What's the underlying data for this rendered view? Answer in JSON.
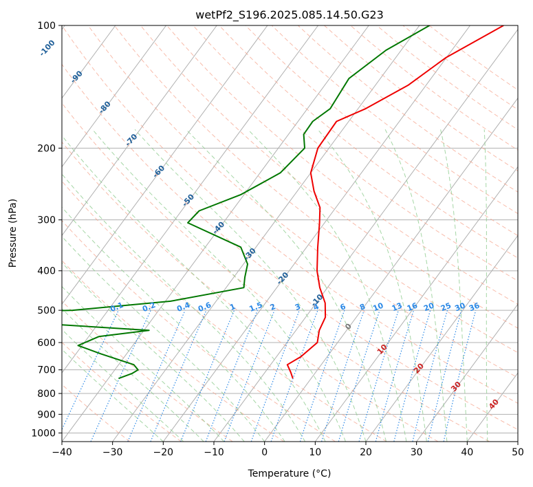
{
  "chart_data": {
    "type": "line",
    "title": "wetPf2_S196.2025.085.14.50.G23",
    "xlabel": "Temperature (°C)",
    "ylabel": "Pressure (hPa)",
    "xlim": [
      -40,
      50
    ],
    "ylim": [
      1050,
      100
    ],
    "y_scale": "log",
    "grid": true,
    "x_ticks": [
      -40,
      -30,
      -20,
      -10,
      0,
      10,
      20,
      30,
      40,
      50
    ],
    "y_ticks": [
      100,
      200,
      300,
      400,
      500,
      600,
      700,
      800,
      900,
      1000
    ],
    "skewed_isotherm_labels": [
      "-100",
      "-90",
      "-80",
      "-70",
      "-60",
      "-50",
      "-40",
      "-30",
      "-20",
      "-10",
      "0",
      "10",
      "20",
      "30",
      "40"
    ],
    "mixing_ratio_labels": [
      "0.1",
      "0.2",
      "0.4",
      "0.6",
      "1",
      "1.5",
      "2",
      "3",
      "4",
      "6",
      "8",
      "10",
      "13",
      "16",
      "20",
      "25",
      "30",
      "36"
    ],
    "colors": {
      "temperature": "#ee0000",
      "dewpoint": "#007700",
      "isotherm_label": "#1f5f99",
      "isotherm_label_positive": "#cc2222",
      "mixing_ratio": "#2a88e6",
      "dry_adiabat": "#f5a58f",
      "moist_adiabat": "#8fcc8f",
      "grid": "#b0b0b0"
    },
    "series": [
      {
        "label": "temperature",
        "points": [
          [
            -13.4,
            100
          ],
          [
            -20.1,
            120
          ],
          [
            -23.5,
            140
          ],
          [
            -28.5,
            160
          ],
          [
            -32.4,
            172
          ],
          [
            -32.2,
            200
          ],
          [
            -30.0,
            230
          ],
          [
            -26.7,
            255
          ],
          [
            -23.1,
            280
          ],
          [
            -21.0,
            305
          ],
          [
            -17.8,
            350
          ],
          [
            -14.5,
            400
          ],
          [
            -11.5,
            440
          ],
          [
            -8.2,
            480
          ],
          [
            -6.1,
            520
          ],
          [
            -5.4,
            560
          ],
          [
            -4.0,
            600
          ],
          [
            -5.2,
            650
          ],
          [
            -6.7,
            680
          ],
          [
            -4.9,
            710
          ],
          [
            -3.6,
            735
          ]
        ]
      },
      {
        "label": "dewpoint",
        "points": [
          [
            -28.0,
            100
          ],
          [
            -33.0,
            115
          ],
          [
            -36.2,
            135
          ],
          [
            -35.5,
            160
          ],
          [
            -37.1,
            172
          ],
          [
            -37.0,
            185
          ],
          [
            -34.8,
            200
          ],
          [
            -36.0,
            230
          ],
          [
            -40.6,
            260
          ],
          [
            -46.5,
            285
          ],
          [
            -47.0,
            305
          ],
          [
            -33.0,
            350
          ],
          [
            -29.2,
            385
          ],
          [
            -27.8,
            415
          ],
          [
            -26.5,
            440
          ],
          [
            -39.0,
            475
          ],
          [
            -57.0,
            500
          ],
          [
            -110.0,
            522
          ],
          [
            -60.0,
            540
          ],
          [
            -39.0,
            560
          ],
          [
            -48.0,
            580
          ],
          [
            -50.8,
            610
          ],
          [
            -45.0,
            640
          ],
          [
            -37.0,
            680
          ],
          [
            -35.4,
            700
          ],
          [
            -36.1,
            715
          ],
          [
            -38.0,
            735
          ]
        ]
      }
    ]
  }
}
